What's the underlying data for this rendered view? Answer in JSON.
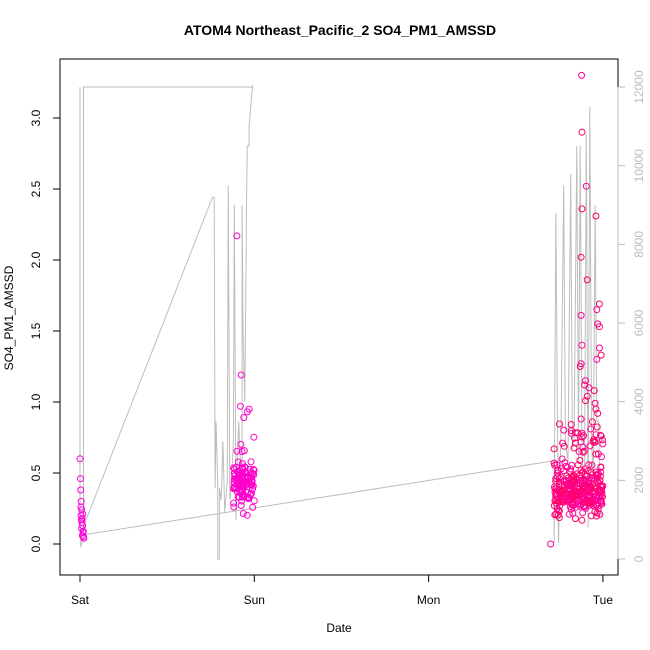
{
  "chart_data": {
    "type": "scatter",
    "title": "ATOM4 Northeast_Pacific_2 SO4_PM1_AMSSD",
    "xlabel": "Date",
    "ylabel": "SO4_PM1_AMSSD",
    "x_tick_labels": [
      "Sat",
      "Sun",
      "Mon",
      "Tue"
    ],
    "x_range_days": [
      -0.15,
      3.15
    ],
    "y_ticks": [
      0.0,
      0.5,
      1.0,
      1.5,
      2.0,
      2.5,
      3.0
    ],
    "ylim": [
      -0.22,
      3.4
    ],
    "y2_ticks": [
      0,
      2000,
      4000,
      6000,
      8000,
      10000,
      12000
    ],
    "y2lim": [
      -400,
      12400
    ],
    "grid": false,
    "colors": {
      "points_a": "#ff00dd",
      "points_b": "#ff0066",
      "line": "#bdbdbd",
      "axis": "#000000",
      "right_axis": "#bdbdbd"
    },
    "secondary_line": [
      [
        0.0,
        12000
      ],
      [
        0.0,
        1000
      ],
      [
        0.005,
        300
      ],
      [
        0.02,
        600
      ],
      [
        0.02,
        12000
      ],
      [
        0.99,
        12000
      ],
      [
        0.99,
        12050
      ],
      [
        0.97,
        11000
      ],
      [
        0.97,
        10500
      ],
      [
        0.96,
        10500
      ],
      [
        0.955,
        9000
      ],
      [
        0.95,
        6000
      ],
      [
        0.945,
        4000
      ],
      [
        0.935,
        6000
      ],
      [
        0.93,
        9000
      ],
      [
        0.93,
        1500
      ],
      [
        0.91,
        3500
      ],
      [
        0.9,
        2000
      ],
      [
        0.895,
        1000
      ],
      [
        0.885,
        9000
      ],
      [
        0.88,
        3000
      ],
      [
        0.87,
        2000
      ],
      [
        0.86,
        1500
      ],
      [
        0.85,
        9500
      ],
      [
        0.845,
        2000
      ],
      [
        0.83,
        1200
      ],
      [
        0.82,
        3000
      ],
      [
        0.81,
        1500
      ],
      [
        0.8,
        1800
      ],
      [
        0.8,
        0
      ],
      [
        0.79,
        0
      ],
      [
        0.79,
        2000
      ],
      [
        0.78,
        3500
      ],
      [
        0.775,
        1800
      ],
      [
        0.77,
        9200
      ],
      [
        0.76,
        9200
      ],
      [
        0.0,
        600
      ],
      [
        2.72,
        2500
      ],
      [
        2.72,
        400
      ],
      [
        2.73,
        8800
      ],
      [
        2.745,
        400
      ],
      [
        2.76,
        3500
      ],
      [
        2.775,
        9500
      ],
      [
        2.785,
        3000
      ],
      [
        2.8,
        2500
      ],
      [
        2.815,
        9800
      ],
      [
        2.825,
        2800
      ],
      [
        2.835,
        3000
      ],
      [
        2.85,
        10500
      ],
      [
        2.86,
        2500
      ],
      [
        2.87,
        10500
      ],
      [
        2.88,
        2800
      ],
      [
        2.89,
        1500
      ],
      [
        2.895,
        2500
      ],
      [
        2.905,
        10800
      ],
      [
        2.915,
        800
      ],
      [
        2.925,
        11500
      ],
      [
        2.935,
        3000
      ],
      [
        2.945,
        2000
      ],
      [
        2.955,
        9000
      ],
      [
        2.965,
        3500
      ],
      [
        2.975,
        3500
      ],
      [
        2.985,
        1500
      ],
      [
        2.995,
        1000
      ]
    ]
  }
}
